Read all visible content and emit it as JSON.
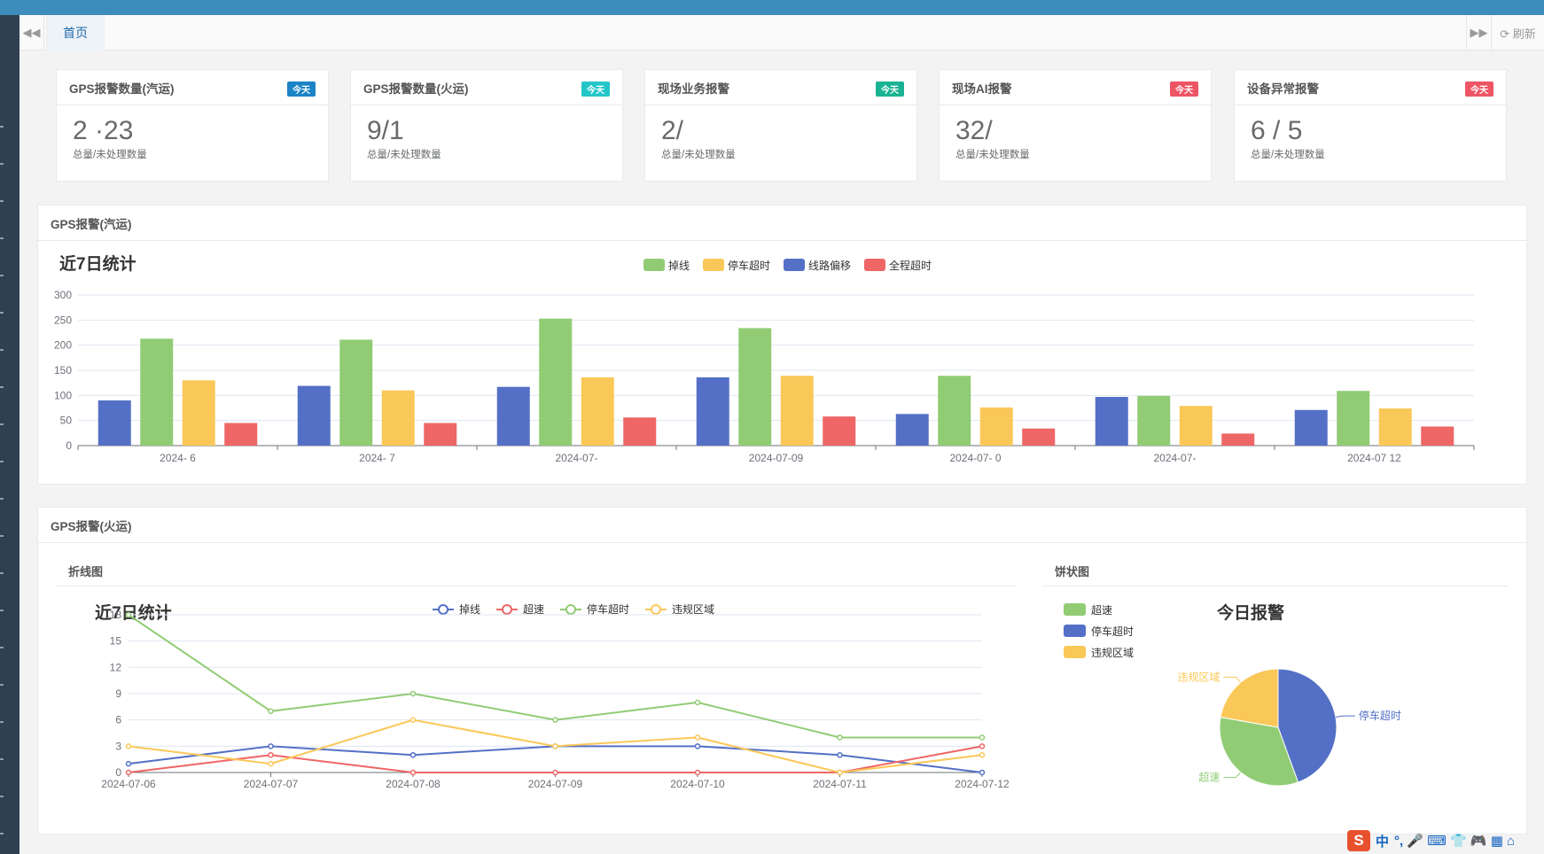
{
  "tabbar": {
    "back_icon": "double-left-icon",
    "home_tab": "首页",
    "forward_icon": "double-right-icon",
    "refresh_label": "⟳ 刷新"
  },
  "stat_cards": [
    {
      "title": "GPS报警数量(汽运)",
      "badge": "今天",
      "badge_color": "#1c84c6",
      "value": "2 ·23",
      "sub": "总量/未处理数量"
    },
    {
      "title": "GPS报警数量(火运)",
      "badge": "今天",
      "badge_color": "#23c6c8",
      "value": "9/1",
      "sub": "总量/未处理数量"
    },
    {
      "title": "现场业务报警",
      "badge": "今天",
      "badge_color": "#1ab394",
      "value": "2/",
      "sub": "总量/未处理数量"
    },
    {
      "title": "现场AI报警",
      "badge": "今天",
      "badge_color": "#ed5565",
      "value": "32/",
      "sub": "总量/未处理数量"
    },
    {
      "title": "设备异常报警",
      "badge": "今天",
      "badge_color": "#ed5565",
      "value": "6  / 5",
      "sub": "总量/未处理数量"
    }
  ],
  "panel_truck": {
    "title": "GPS报警(汽运)"
  },
  "panel_train": {
    "title": "GPS报警(火运)",
    "line_header": "折线图",
    "pie_header": "饼状图"
  },
  "bar_chart": {
    "chart_data": {
      "type": "bar",
      "title": "近7日统计",
      "categories": [
        "2024-   6",
        "2024-  7",
        "2024-07-  ",
        "2024-07-09",
        "2024-07-  0",
        "2024-07-",
        "2024-07 12"
      ],
      "series": [
        {
          "name": "线路偏移",
          "color": "#5470c6",
          "values": [
            90,
            119,
            117,
            136,
            63,
            97,
            71
          ]
        },
        {
          "name": "掉线",
          "color": "#91cc75",
          "values": [
            213,
            211,
            253,
            234,
            139,
            99,
            109
          ]
        },
        {
          "name": "停车超时",
          "color": "#fac858",
          "values": [
            130,
            110,
            136,
            139,
            76,
            79,
            74
          ]
        },
        {
          "name": "全程超时",
          "color": "#ee6666",
          "values": [
            45,
            45,
            56,
            58,
            34,
            24,
            38
          ]
        }
      ],
      "legend_order": [
        "掉线",
        "停车超时",
        "线路偏移",
        "全程超时"
      ],
      "yticks": [
        0,
        50,
        100,
        150,
        200,
        250,
        300
      ],
      "ylim": [
        0,
        300
      ]
    }
  },
  "line_chart": {
    "chart_data": {
      "type": "line",
      "title": "近7日统计",
      "x": [
        "2024-07-06",
        "2024-07-07",
        "2024-07-08",
        "2024-07-09",
        "2024-07-10",
        "2024-07-11",
        "2024-07-12"
      ],
      "series": [
        {
          "name": "掉线",
          "color": "#5470c6",
          "values": [
            1,
            3,
            2,
            3,
            3,
            2,
            0
          ]
        },
        {
          "name": "超速",
          "color": "#ee6666",
          "values": [
            0,
            2,
            0,
            0,
            0,
            0,
            3
          ]
        },
        {
          "name": "停车超时",
          "color": "#91cc75",
          "values": [
            18,
            7,
            9,
            6,
            8,
            4,
            4
          ]
        },
        {
          "name": "违规区域",
          "color": "#fac858",
          "values": [
            3,
            1,
            6,
            3,
            4,
            0,
            2
          ]
        }
      ],
      "yticks": [
        0,
        3,
        6,
        9,
        12,
        15,
        18
      ],
      "ylim": [
        0,
        18
      ]
    }
  },
  "pie_chart": {
    "chart_data": {
      "type": "pie",
      "title": "今日报警",
      "slices": [
        {
          "name": "超速",
          "color": "#91cc75",
          "value": 3
        },
        {
          "name": "停车超时",
          "color": "#5470c6",
          "value": 4
        },
        {
          "name": "违规区域",
          "color": "#fac858",
          "value": 2
        }
      ]
    }
  },
  "ime": {
    "logo": "S",
    "lang": "中",
    "icons": "°, 🎤 ⌨ 👕 🎮 ▦ ⌂"
  }
}
